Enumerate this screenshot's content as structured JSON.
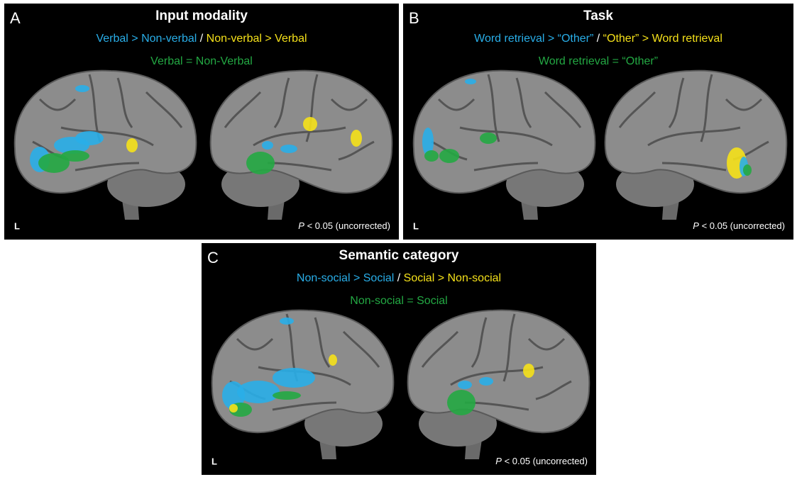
{
  "panels": [
    {
      "letter": "A",
      "title": "Input modality",
      "contrast_a": "Verbal > Non-verbal",
      "separator": " / ",
      "contrast_b": "Non-verbal > Verbal",
      "equal": "Verbal = Non-Verbal",
      "hemisphere": "L",
      "p_symbol": "P",
      "p_text": " < 0.05 (uncorrected)"
    },
    {
      "letter": "B",
      "title": "Task",
      "contrast_a": "Word retrieval > “Other”",
      "separator": " / ",
      "contrast_b": "“Other” > Word retrieval",
      "equal": "Word retrieval = “Other”",
      "hemisphere": "L",
      "p_symbol": "P",
      "p_text": " < 0.05 (uncorrected)"
    },
    {
      "letter": "C",
      "title": "Semantic category",
      "contrast_a": "Non-social > Social",
      "separator": " / ",
      "contrast_b": "Social > Non-social",
      "equal": "Non-social = Social",
      "hemisphere": "L",
      "p_symbol": "P",
      "p_text": " < 0.05 (uncorrected)"
    }
  ],
  "colors": {
    "a": "#29aee8",
    "b": "#f5e11a",
    "equal": "#23a843",
    "text": "#ffffff"
  }
}
